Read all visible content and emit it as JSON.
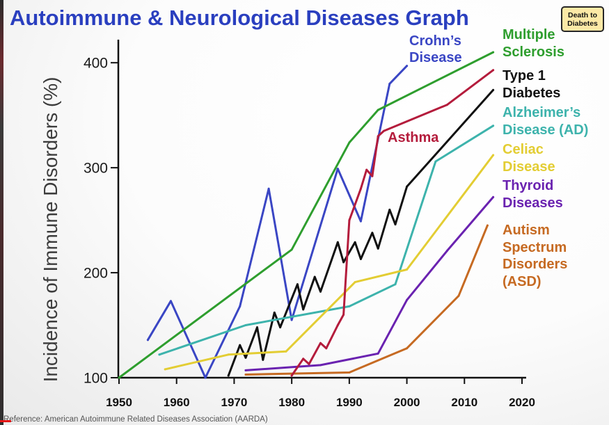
{
  "chart_data": {
    "type": "line",
    "title": "Autoimmune & Neurological Diseases Graph",
    "ylabel": "Incidence of Immune Disorders (%)",
    "xlim": [
      1950,
      2020
    ],
    "ylim": [
      100,
      420
    ],
    "xticks": [
      1950,
      1960,
      1970,
      1980,
      1990,
      2000,
      2010,
      2020
    ],
    "yticks": [
      100,
      200,
      300,
      400
    ],
    "grid": false,
    "legend": "right",
    "series": [
      {
        "name": "Crohn’s\nDisease",
        "color": "#3a46c4",
        "x": [
          1955,
          1959,
          1965,
          1971,
          1976,
          1980,
          1988,
          1992,
          1997,
          2000
        ],
        "y": [
          136,
          173,
          100,
          168,
          280,
          155,
          299,
          249,
          380,
          397
        ]
      },
      {
        "name": "Multiple\nSclerosis",
        "color": "#2e9e2e",
        "x": [
          1950,
          1980,
          1990,
          1995,
          2015
        ],
        "y": [
          100,
          222,
          324,
          355,
          410
        ]
      },
      {
        "name": "Type 1\nDiabetes",
        "color": "#111111",
        "x": [
          1969,
          1971,
          1972,
          1974,
          1975,
          1977,
          1978,
          1981,
          1982,
          1984,
          1985,
          1988,
          1989,
          1991,
          1992,
          1994,
          1995,
          1997,
          1998,
          2000,
          2015
        ],
        "y": [
          102,
          131,
          119,
          148,
          117,
          162,
          148,
          189,
          165,
          196,
          182,
          229,
          210,
          229,
          213,
          238,
          223,
          260,
          246,
          282,
          374
        ]
      },
      {
        "name": "Alzheimer’s\nDisease (AD)",
        "color": "#3db3ac",
        "x": [
          1957,
          1972,
          1990,
          1998,
          2005,
          2015
        ],
        "y": [
          122,
          150,
          168,
          189,
          306,
          340
        ]
      },
      {
        "name": "Celiac\nDisease",
        "color": "#e3cd33",
        "x": [
          1958,
          1969,
          1979,
          1991,
          2000,
          2015
        ],
        "y": [
          108,
          122,
          125,
          191,
          203,
          312
        ]
      },
      {
        "name": "Thyroid\nDiseases",
        "color": "#6a22b0",
        "x": [
          1972,
          1985,
          1995,
          2000,
          2007,
          2015
        ],
        "y": [
          107,
          112,
          123,
          174,
          221,
          272
        ]
      },
      {
        "name": "Autism\nSpectrum\nDisorders\n(ASD)",
        "color": "#c66a22",
        "x": [
          1972,
          1990,
          2000,
          2009,
          2014
        ],
        "y": [
          103,
          105,
          128,
          178,
          245
        ]
      },
      {
        "name": "Asthma",
        "color": "#b41c3c",
        "x": [
          1980,
          1982,
          1983,
          1985,
          1986,
          1988,
          1989,
          1990,
          1992,
          1993,
          1994,
          1995,
          1996,
          2007,
          2015
        ],
        "y": [
          102,
          118,
          113,
          133,
          128,
          150,
          160,
          250,
          280,
          298,
          292,
          330,
          335,
          360,
          393
        ]
      }
    ]
  },
  "logo": {
    "line1": "Death to",
    "line2": "Diabetes"
  },
  "reference": "Reference: American Autoimmune Related Diseases Association (AARDA)",
  "colors": {
    "title": "#2a3fbf",
    "ylabel": "#3c3c3c",
    "axis": "#111111"
  },
  "video_progress": 0.018
}
